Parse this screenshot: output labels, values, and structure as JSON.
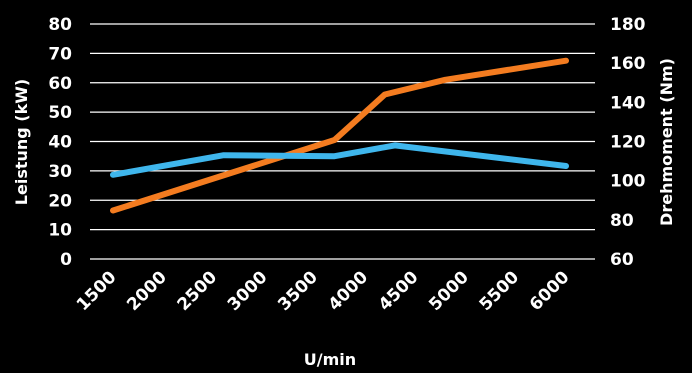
{
  "chart_data": {
    "type": "line",
    "xlabel": "U/min",
    "ylabel_left": "Leistung (kW)",
    "ylabel_right": "Drehmoment (Nm)",
    "x_ticks": [
      "1500",
      "2000",
      "2500",
      "3000",
      "3500",
      "4000",
      "4500",
      "5000",
      "5500",
      "6000"
    ],
    "x_range": [
      1500,
      6000
    ],
    "y_left_ticks": [
      "0",
      "10",
      "20",
      "30",
      "40",
      "50",
      "60",
      "70",
      "80"
    ],
    "y_left_range": [
      0,
      80
    ],
    "y_right_ticks": [
      "60",
      "80",
      "100",
      "120",
      "140",
      "160",
      "180"
    ],
    "y_right_range": [
      60,
      180
    ],
    "grid": true,
    "legend": "none",
    "series": [
      {
        "axis": "left",
        "color": "#f47c20",
        "x": [
          1500,
          3700,
          4200,
          4800,
          6000
        ],
        "y": [
          16.5,
          40.5,
          56,
          61,
          67.5
        ]
      },
      {
        "axis": "right",
        "color": "#3fb6ec",
        "x": [
          1500,
          2600,
          3700,
          4300,
          6000
        ],
        "y": [
          103,
          113,
          112.5,
          118,
          107.5
        ]
      }
    ]
  }
}
